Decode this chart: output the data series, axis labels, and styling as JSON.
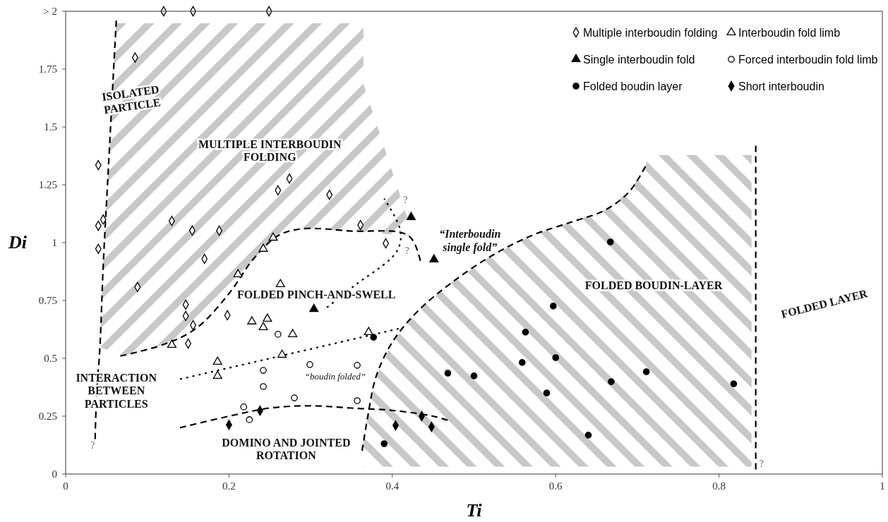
{
  "chart_data": {
    "type": "scatter",
    "xlabel": "Ti",
    "ylabel": "Di",
    "xlim": [
      0,
      1
    ],
    "ylim": [
      0,
      2
    ],
    "xticks": [
      0,
      0.2,
      0.4,
      0.6,
      0.8,
      1
    ],
    "yticks": [
      0,
      0.25,
      0.5,
      0.75,
      1,
      1.25,
      1.5,
      1.75,
      {
        "value": 2,
        "label": "> 2"
      }
    ],
    "legend": "top right",
    "grid": false,
    "series": [
      {
        "type": "line",
        "color": "#000000",
        "line_style": "dashed",
        "marker": "none",
        "x": [
          0.062,
          0.058,
          0.052,
          0.046,
          0.042,
          0.038,
          0.036
        ],
        "values": [
          1.96,
          1.7,
          1.3,
          0.9,
          0.55,
          0.35,
          0.14
        ]
      },
      {
        "type": "line",
        "color": "#000000",
        "line_style": "dashed",
        "marker": "none",
        "x": [
          0.067,
          0.12,
          0.16,
          0.2,
          0.23,
          0.26,
          0.29,
          0.35,
          0.42,
          0.435
        ],
        "values": [
          0.51,
          0.56,
          0.63,
          0.78,
          0.93,
          1.03,
          1.06,
          1.05,
          1.03,
          0.91
        ]
      },
      {
        "type": "line",
        "color": "#000000",
        "line_style": "dotted",
        "marker": "none",
        "x": [
          0.14,
          0.41
        ],
        "values": [
          0.41,
          0.63
        ]
      },
      {
        "type": "line",
        "color": "#000000",
        "line_style": "dotted",
        "marker": "none",
        "x": [
          0.32,
          0.352,
          0.405,
          0.41,
          0.39
        ],
        "values": [
          0.72,
          0.81,
          0.96,
          1.05,
          1.19
        ]
      },
      {
        "type": "line",
        "color": "#000000",
        "line_style": "dashed",
        "marker": "none",
        "x": [
          0.14,
          0.2,
          0.25,
          0.3,
          0.35,
          0.4,
          0.45,
          0.47
        ],
        "values": [
          0.2,
          0.25,
          0.285,
          0.295,
          0.285,
          0.275,
          0.25,
          0.23
        ]
      },
      {
        "type": "line",
        "color": "#000000",
        "line_style": "dashed",
        "marker": "none",
        "x": [
          0.363,
          0.37,
          0.38,
          0.4,
          0.43,
          0.47,
          0.52,
          0.57,
          0.62,
          0.66,
          0.69,
          0.71
        ],
        "values": [
          0.1,
          0.25,
          0.42,
          0.57,
          0.7,
          0.82,
          0.94,
          1.03,
          1.09,
          1.14,
          1.22,
          1.33
        ]
      },
      {
        "type": "line",
        "color": "#000000",
        "line_style": "dashed",
        "marker": "none",
        "x": [
          0.845,
          0.845
        ],
        "values": [
          0.02,
          1.43
        ]
      },
      {
        "name": "Multiple interboudin folding",
        "color": "#ffffff",
        "marker": "diamond",
        "x": [
          0.12,
          0.156,
          0.249,
          0.085,
          0.04,
          0.274,
          0.26,
          0.323,
          0.13,
          0.155,
          0.188,
          0.04,
          0.046,
          0.04,
          0.17,
          0.361,
          0.392,
          0.088,
          0.147,
          0.156,
          0.15,
          0.198,
          0.147
        ],
        "values": [
          2,
          2,
          2,
          1.8,
          1.335,
          1.277,
          1.226,
          1.207,
          1.094,
          1.052,
          1.052,
          1.073,
          1.1,
          0.973,
          0.93,
          1.076,
          0.997,
          0.808,
          0.732,
          0.643,
          0.564,
          0.686,
          0.683
        ]
      },
      {
        "name": "Interboudin fold limb",
        "color": "#ffffff",
        "marker": "triangle",
        "x": [
          0.211,
          0.263,
          0.228,
          0.247,
          0.242,
          0.278,
          0.265,
          0.13,
          0.186,
          0.186,
          0.254,
          0.242,
          0.371
        ],
        "values": [
          0.863,
          0.82,
          0.659,
          0.671,
          0.634,
          0.604,
          0.515,
          0.558,
          0.485,
          0.424,
          1.021,
          0.973,
          0.613
        ]
      },
      {
        "name": "Single interboudin fold",
        "color": "#000000",
        "marker": "triangle",
        "x": [
          0.423,
          0.451,
          0.304
        ],
        "values": [
          1.11,
          0.927,
          0.713
        ]
      },
      {
        "name": "Forced interboudin fold limb",
        "color": "#ffffff",
        "marker": "circle",
        "x": [
          0.26,
          0.299,
          0.242,
          0.242,
          0.28,
          0.218,
          0.225,
          0.357,
          0.357
        ],
        "values": [
          0.604,
          0.473,
          0.448,
          0.378,
          0.329,
          0.29,
          0.235,
          0.47,
          0.317
        ]
      },
      {
        "name": "Folded boudin layer",
        "color": "#000000",
        "marker": "circle",
        "x": [
          0.667,
          0.597,
          0.563,
          0.6,
          0.559,
          0.468,
          0.5,
          0.668,
          0.589,
          0.64,
          0.39,
          0.377,
          0.711,
          0.818
        ],
        "values": [
          1.003,
          0.726,
          0.613,
          0.503,
          0.482,
          0.436,
          0.424,
          0.399,
          0.35,
          0.168,
          0.131,
          0.591,
          0.442,
          0.39
        ]
      },
      {
        "name": "Short interboudin",
        "color": "#000000",
        "marker": "diamond",
        "x": [
          0.2,
          0.238,
          0.404,
          0.436,
          0.448
        ],
        "values": [
          0.213,
          0.274,
          0.21,
          0.25,
          0.204
        ]
      }
    ],
    "annotations": [
      "ISOLATED\nPARTICLE",
      "MULTIPLE INTERBOUDIN\nFOLDING",
      "FOLDED PINCH-AND-SWELL",
      "INTERACTION\nBETWEEN\nPARTICLES",
      "DOMINO   AND JOINTED\nROTATION",
      "FOLDED BOUDIN-LAYER",
      "FOLDED LAYER",
      "“Interboudin\nsingle fold”",
      "“boudin folded”",
      "?",
      "?",
      "?",
      "?"
    ]
  }
}
